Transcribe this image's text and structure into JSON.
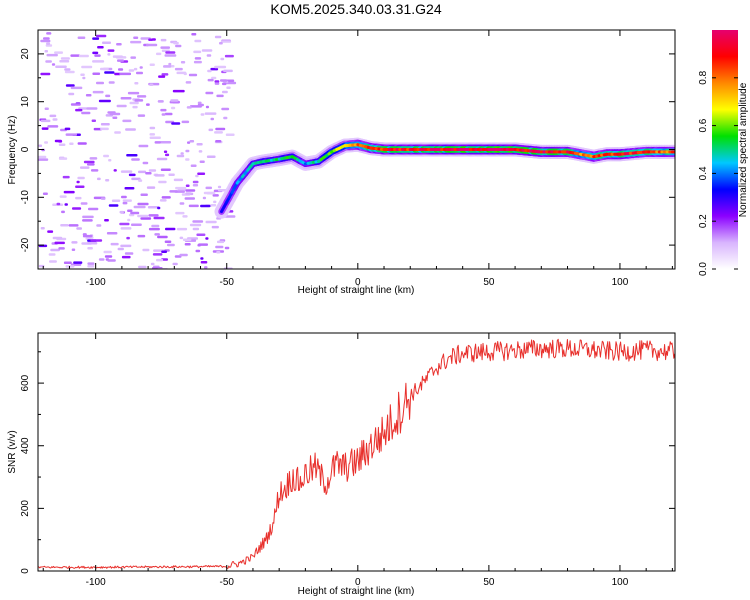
{
  "title": "KOM5.2025.340.03.31.G24",
  "chart_data": [
    {
      "type": "heatmap",
      "name": "spectrogram",
      "xlabel": "Height of straight line (km)",
      "ylabel": "Frequency (Hz)",
      "xlim": [
        -122,
        121
      ],
      "ylim": [
        -25,
        25
      ],
      "xticks": [
        -100,
        -50,
        0,
        50,
        100
      ],
      "yticks": [
        -20,
        -10,
        0,
        10,
        20
      ],
      "colorbar": {
        "label": "Normalized spectral amplitude",
        "range": [
          0,
          1
        ],
        "ticks": [
          0.0,
          0.2,
          0.4,
          0.6,
          0.8
        ],
        "colors": [
          "#ffffff",
          "#d8b4fe",
          "#8b00ff",
          "#0000ff",
          "#00c8ff",
          "#00e000",
          "#ffff00",
          "#ff8800",
          "#ff0000",
          "#e6006e"
        ]
      },
      "ridge": {
        "x": [
          -52,
          -49,
          -46,
          -43,
          -40,
          -36,
          -30,
          -25,
          -20,
          -15,
          -10,
          -5,
          0,
          5,
          10,
          20,
          30,
          40,
          50,
          60,
          70,
          80,
          85,
          90,
          95,
          100,
          110,
          121
        ],
        "frequency": [
          -13,
          -10,
          -7,
          -5,
          -3,
          -2.5,
          -2,
          -1.5,
          -3,
          -2.5,
          -0.5,
          0.8,
          1,
          0.3,
          0,
          0,
          0,
          0,
          0,
          0,
          -0.5,
          -0.5,
          -1,
          -1.5,
          -1,
          -1,
          -0.5,
          -0.5
        ],
        "amplitude": [
          0.3,
          0.35,
          0.4,
          0.45,
          0.45,
          0.5,
          0.5,
          0.55,
          0.4,
          0.5,
          0.6,
          0.7,
          0.8,
          0.85,
          0.9,
          0.9,
          0.92,
          0.95,
          0.95,
          0.95,
          0.92,
          0.9,
          0.75,
          0.8,
          0.85,
          0.9,
          0.85,
          0.8
        ]
      },
      "noise_region_x": [
        -122,
        -50
      ]
    },
    {
      "type": "line",
      "name": "snr",
      "xlabel": "Height of straight line (km)",
      "ylabel": "SNR (v/v)",
      "xlim": [
        -122,
        121
      ],
      "ylim": [
        0,
        760
      ],
      "xticks": [
        -100,
        -50,
        0,
        50,
        100
      ],
      "yticks": [
        0,
        200,
        400,
        600
      ],
      "color": "#e8302c",
      "x": [
        -122,
        -100,
        -80,
        -60,
        -50,
        -45,
        -40,
        -37,
        -35,
        -32,
        -30,
        -28,
        -25,
        -22,
        -20,
        -18,
        -16,
        -14,
        -12,
        -10,
        -8,
        -5,
        0,
        5,
        10,
        15,
        20,
        25,
        30,
        35,
        40,
        50,
        60,
        70,
        80,
        90,
        100,
        110,
        121
      ],
      "snr": [
        12,
        12,
        13,
        14,
        15,
        25,
        45,
        80,
        100,
        160,
        250,
        260,
        300,
        280,
        310,
        320,
        330,
        300,
        280,
        320,
        340,
        330,
        350,
        400,
        440,
        500,
        560,
        600,
        650,
        680,
        695,
        700,
        705,
        710,
        710,
        705,
        700,
        705,
        700
      ]
    }
  ]
}
